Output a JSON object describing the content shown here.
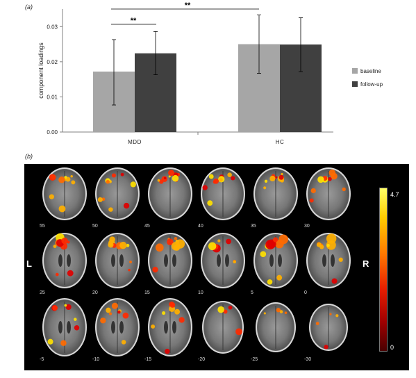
{
  "panel_a_label": "(a)",
  "panel_b_label": "(b)",
  "chart_data": {
    "type": "bar",
    "categories": [
      "MDD",
      "HC"
    ],
    "ylabel": "component loadings",
    "xlabel": "",
    "ylim": [
      0,
      0.035
    ],
    "yticks": [
      "0.00",
      "0.01",
      "0.02",
      "0.03"
    ],
    "ytick_values": [
      0,
      0.01,
      0.02,
      0.03
    ],
    "series": [
      {
        "name": "baseline",
        "color": "#a6a6a6",
        "values": [
          0.0172,
          0.025
        ],
        "err_low": [
          0.0077,
          0.0167
        ],
        "err_high": [
          0.0263,
          0.0333
        ]
      },
      {
        "name": "follow-up",
        "color": "#404040",
        "values": [
          0.0224,
          0.0249
        ],
        "err_low": [
          0.0163,
          0.0172
        ],
        "err_high": [
          0.0286,
          0.0325
        ]
      }
    ],
    "legend_position": "right",
    "annotations": [
      {
        "text": "**",
        "between": "MDD baseline and MDD follow-up"
      },
      {
        "text": "**",
        "between": "MDD baseline and HC baseline"
      }
    ]
  },
  "brain_map": {
    "row1_labels": [
      "55",
      "50",
      "45",
      "40",
      "35",
      "30"
    ],
    "row2_labels": [
      "25",
      "20",
      "15",
      "10",
      "5",
      "0"
    ],
    "row3_labels": [
      "-5",
      "-10",
      "-15",
      "-20",
      "-25",
      "-30"
    ],
    "left_label": "L",
    "right_label": "R",
    "colorbar_max": "4.7",
    "colorbar_min": "0",
    "colormap": "hot"
  }
}
